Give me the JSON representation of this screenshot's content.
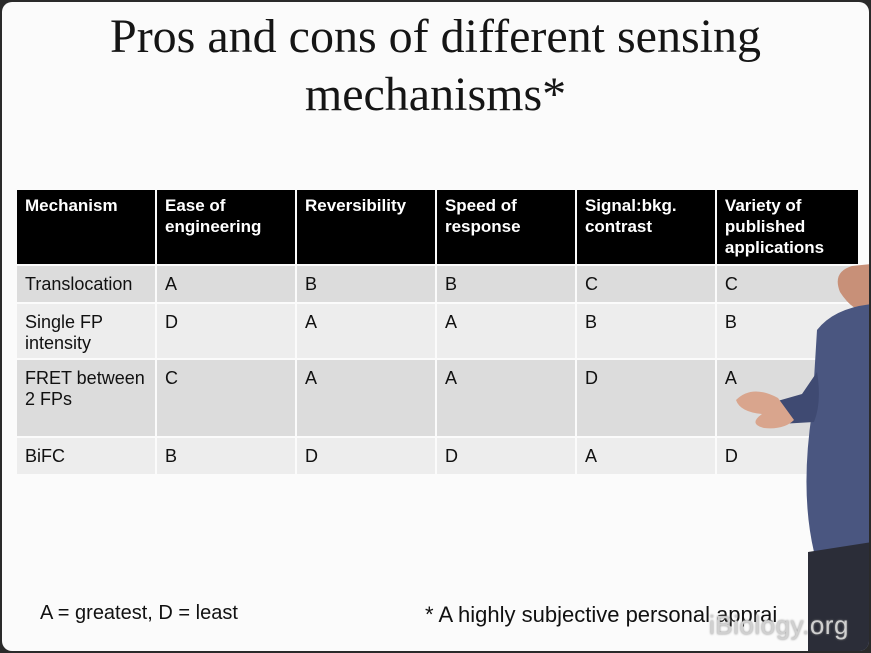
{
  "slide": {
    "title_line1": "Pros and cons of different sensing",
    "title_line2": "mechanisms*"
  },
  "table": {
    "headers": [
      "Mechanism",
      "Ease of engineering",
      "Reversibility",
      "Speed of response",
      "Signal:bkg. contrast",
      "Variety of published applications"
    ],
    "rows": [
      [
        "Translocation",
        "A",
        "B",
        "B",
        "C",
        "C"
      ],
      [
        "Single FP intensity",
        "D",
        "A",
        "A",
        "B",
        "B"
      ],
      [
        "FRET between 2 FPs",
        "C",
        "A",
        "A",
        "D",
        "A"
      ],
      [
        "BiFC",
        "B",
        "D",
        "D",
        "A",
        "D"
      ]
    ]
  },
  "legend": "A = greatest, D = least",
  "footnote": "* A highly subjective personal apprai",
  "watermark": "iBiology.org",
  "colors": {
    "header_bg": "#000000",
    "row_odd": "#dcdcdc",
    "row_even": "#ededed",
    "shirt": "#4a5680"
  }
}
